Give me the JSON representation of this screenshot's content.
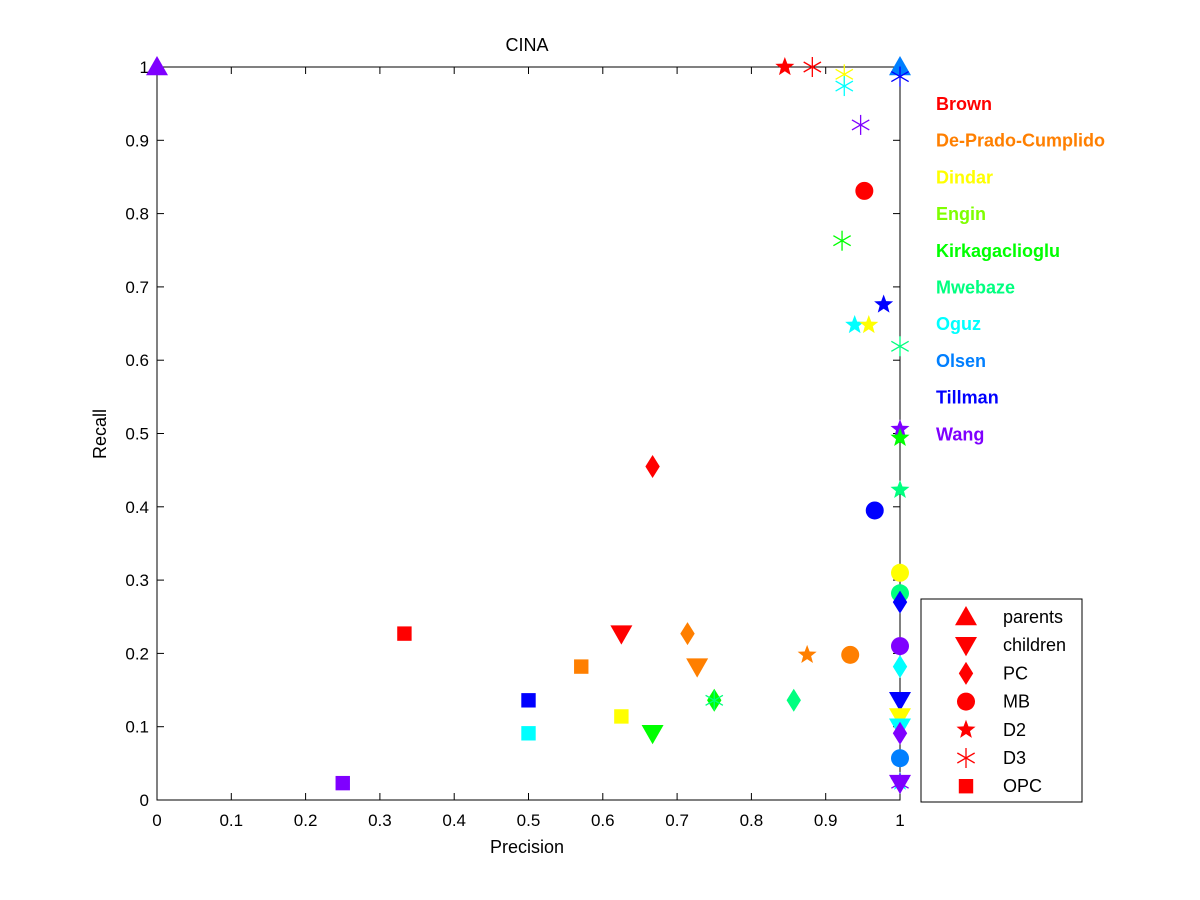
{
  "chart_data": {
    "type": "scatter",
    "title": "CINA",
    "xlabel": "Precision",
    "ylabel": "Recall",
    "xlim": [
      0,
      1
    ],
    "ylim": [
      0,
      1
    ],
    "x_ticks": [
      "0",
      "0.1",
      "0.2",
      "0.3",
      "0.4",
      "0.5",
      "0.6",
      "0.7",
      "0.8",
      "0.9",
      "1"
    ],
    "y_ticks": [
      "0",
      "0.1",
      "0.2",
      "0.3",
      "0.4",
      "0.5",
      "0.6",
      "0.7",
      "0.8",
      "0.9",
      "1"
    ],
    "grid": false,
    "team_legend_position": "right",
    "marker_legend_position": "bottom-right",
    "teams": [
      {
        "name": "Brown",
        "color": "#ff0000"
      },
      {
        "name": "De-Prado-Cumplido",
        "color": "#ff7f00"
      },
      {
        "name": "Dindar",
        "color": "#ffff00"
      },
      {
        "name": "Engin",
        "color": "#7fff00"
      },
      {
        "name": "Kirkagaclioglu",
        "color": "#00ff00"
      },
      {
        "name": "Mwebaze",
        "color": "#00ff7f"
      },
      {
        "name": "Oguz",
        "color": "#00ffff"
      },
      {
        "name": "Olsen",
        "color": "#007fff"
      },
      {
        "name": "Tillman",
        "color": "#0000ff"
      },
      {
        "name": "Wang",
        "color": "#7f00ff"
      }
    ],
    "marker_legend": [
      {
        "label": "parents",
        "shape": "triangle-up",
        "color": "#ff0000"
      },
      {
        "label": "children",
        "shape": "triangle-down",
        "color": "#ff0000"
      },
      {
        "label": "PC",
        "shape": "diamond",
        "color": "#ff0000"
      },
      {
        "label": "MB",
        "shape": "circle",
        "color": "#ff0000"
      },
      {
        "label": "D2",
        "shape": "star",
        "color": "#ff0000"
      },
      {
        "label": "D3",
        "shape": "asterisk",
        "color": "#ff0000"
      },
      {
        "label": "OPC",
        "shape": "square",
        "color": "#ff0000"
      }
    ],
    "points": [
      {
        "team": "Wang",
        "type": "parents",
        "x": 0,
        "y": 1
      },
      {
        "team": "Olsen",
        "type": "parents",
        "x": 1,
        "y": 1
      },
      {
        "team": "Brown",
        "type": "D2",
        "x": 0.845,
        "y": 1
      },
      {
        "team": "Brown",
        "type": "D3",
        "x": 0.882,
        "y": 1
      },
      {
        "team": "Dindar",
        "type": "D3",
        "x": 0.925,
        "y": 0.99
      },
      {
        "team": "Oguz",
        "type": "D3",
        "x": 0.925,
        "y": 0.974
      },
      {
        "team": "Tillman",
        "type": "D3",
        "x": 1,
        "y": 0.987
      },
      {
        "team": "Wang",
        "type": "D3",
        "x": 0.947,
        "y": 0.921
      },
      {
        "team": "Brown",
        "type": "MB",
        "x": 0.952,
        "y": 0.831
      },
      {
        "team": "Kirkagaclioglu",
        "type": "D3",
        "x": 0.922,
        "y": 0.763
      },
      {
        "team": "Tillman",
        "type": "D2",
        "x": 0.978,
        "y": 0.676
      },
      {
        "team": "Oguz",
        "type": "D2",
        "x": 0.939,
        "y": 0.648
      },
      {
        "team": "Dindar",
        "type": "D2",
        "x": 0.958,
        "y": 0.648
      },
      {
        "team": "Mwebaze",
        "type": "D3",
        "x": 1,
        "y": 0.619
      },
      {
        "team": "Wang",
        "type": "D2",
        "x": 1,
        "y": 0.506
      },
      {
        "team": "Kirkagaclioglu",
        "type": "D2",
        "x": 1,
        "y": 0.494
      },
      {
        "team": "Brown",
        "type": "PC",
        "x": 0.667,
        "y": 0.455
      },
      {
        "team": "Mwebaze",
        "type": "D2",
        "x": 1,
        "y": 0.423
      },
      {
        "team": "Tillman",
        "type": "MB",
        "x": 0.966,
        "y": 0.395
      },
      {
        "team": "Dindar",
        "type": "MB",
        "x": 1,
        "y": 0.31
      },
      {
        "team": "Mwebaze",
        "type": "MB",
        "x": 1,
        "y": 0.282
      },
      {
        "team": "Tillman",
        "type": "PC",
        "x": 1,
        "y": 0.27
      },
      {
        "team": "Brown",
        "type": "OPC",
        "x": 0.333,
        "y": 0.227
      },
      {
        "team": "Brown",
        "type": "children",
        "x": 0.625,
        "y": 0.227
      },
      {
        "team": "De-Prado-Cumplido",
        "type": "PC",
        "x": 0.714,
        "y": 0.227
      },
      {
        "team": "Wang",
        "type": "MB",
        "x": 1,
        "y": 0.21
      },
      {
        "team": "De-Prado-Cumplido",
        "type": "D2",
        "x": 0.875,
        "y": 0.198
      },
      {
        "team": "De-Prado-Cumplido",
        "type": "MB",
        "x": 0.933,
        "y": 0.198
      },
      {
        "team": "Oguz",
        "type": "PC",
        "x": 1,
        "y": 0.182
      },
      {
        "team": "De-Prado-Cumplido",
        "type": "OPC",
        "x": 0.571,
        "y": 0.182
      },
      {
        "team": "De-Prado-Cumplido",
        "type": "children",
        "x": 0.727,
        "y": 0.182
      },
      {
        "team": "Tillman",
        "type": "OPC",
        "x": 0.5,
        "y": 0.136
      },
      {
        "team": "Mwebaze",
        "type": "PC",
        "x": 0.857,
        "y": 0.136
      },
      {
        "team": "Kirkagaclioglu",
        "type": "PC",
        "x": 0.75,
        "y": 0.136
      },
      {
        "team": "Mwebaze",
        "type": "D3",
        "x": 0.75,
        "y": 0.136
      },
      {
        "team": "Tillman",
        "type": "children",
        "x": 1,
        "y": 0.136
      },
      {
        "team": "Dindar",
        "type": "children",
        "x": 1,
        "y": 0.114
      },
      {
        "team": "Dindar",
        "type": "OPC",
        "x": 0.625,
        "y": 0.114
      },
      {
        "team": "Oguz",
        "type": "children",
        "x": 1,
        "y": 0.1
      },
      {
        "team": "Wang",
        "type": "PC",
        "x": 1,
        "y": 0.091
      },
      {
        "team": "Oguz",
        "type": "OPC",
        "x": 0.5,
        "y": 0.091
      },
      {
        "team": "Kirkagaclioglu",
        "type": "children",
        "x": 0.667,
        "y": 0.091
      },
      {
        "team": "Olsen",
        "type": "MB",
        "x": 1,
        "y": 0.057
      },
      {
        "team": "Oguz",
        "type": "D2",
        "x": 1,
        "y": 0.025
      },
      {
        "team": "Wang",
        "type": "OPC",
        "x": 0.25,
        "y": 0.023
      },
      {
        "team": "Wang",
        "type": "children",
        "x": 1,
        "y": 0.023
      },
      {
        "team": "Wang",
        "type": "D3",
        "x": 1,
        "y": 0.023
      }
    ]
  }
}
